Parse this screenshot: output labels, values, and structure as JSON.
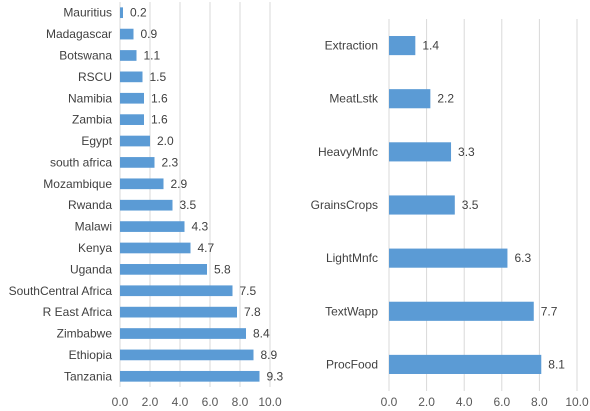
{
  "chart_data": [
    {
      "type": "bar",
      "orientation": "horizontal",
      "categories": [
        "Mauritius",
        "Madagascar",
        "Botswana",
        "RSCU",
        "Namibia",
        "Zambia",
        "Egypt",
        "south africa",
        "Mozambique",
        "Rwanda",
        "Malawi",
        "Kenya",
        "Uganda",
        "SouthCentral Africa",
        "R East Africa",
        "Zimbabwe",
        "Ethiopia",
        "Tanzania"
      ],
      "values": [
        0.2,
        0.9,
        1.1,
        1.5,
        1.6,
        1.6,
        2.0,
        2.3,
        2.9,
        3.5,
        4.3,
        4.7,
        5.8,
        7.5,
        7.8,
        8.4,
        8.9,
        9.3
      ],
      "value_labels": [
        "0.2",
        "0.9",
        "1.1",
        "1.5",
        "1.6",
        "1.6",
        "2.0",
        "2.3",
        "2.9",
        "3.5",
        "4.3",
        "4.7",
        "5.8",
        "7.5",
        "7.8",
        "8.4",
        "8.9",
        "9.3"
      ],
      "xlim": [
        0,
        10
      ],
      "xticks": [
        "0.0",
        "2.0",
        "4.0",
        "6.0",
        "8.0",
        "10.0"
      ],
      "grid": "vertical",
      "color": "#5b9bd5",
      "title": "",
      "xlabel": "",
      "ylabel": ""
    },
    {
      "type": "bar",
      "orientation": "horizontal",
      "categories": [
        "Extraction",
        "MeatLstk",
        "HeavyMnfc",
        "GrainsCrops",
        "LightMnfc",
        "TextWapp",
        "ProcFood"
      ],
      "values": [
        1.4,
        2.2,
        3.3,
        3.5,
        6.3,
        7.7,
        8.1
      ],
      "value_labels": [
        "1.4",
        "2.2",
        "3.3",
        "3.5",
        "6.3",
        "7.7",
        "8.1"
      ],
      "xlim": [
        0,
        10
      ],
      "xticks": [
        "0.0",
        "2.0",
        "4.0",
        "6.0",
        "8.0",
        "10.0"
      ],
      "grid": "vertical",
      "color": "#5b9bd5",
      "title": "",
      "xlabel": "",
      "ylabel": ""
    }
  ]
}
